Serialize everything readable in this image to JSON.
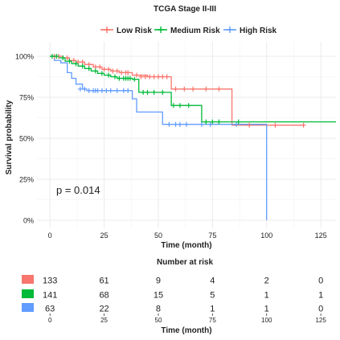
{
  "chart_data": {
    "type": "line",
    "title": "TCGA Stage II-III",
    "xlabel": "Time (month)",
    "ylabel": "Survival probability",
    "xlim": [
      -6,
      132
    ],
    "ylim": [
      0,
      1.02
    ],
    "x_ticks": [
      0,
      25,
      50,
      75,
      100,
      125
    ],
    "y_ticks": [
      {
        "value": 0,
        "label": "0%"
      },
      {
        "value": 0.25,
        "label": "25%"
      },
      {
        "value": 0.5,
        "label": "50%"
      },
      {
        "value": 0.75,
        "label": "75%"
      },
      {
        "value": 1.0,
        "label": "100%"
      }
    ],
    "grid": true,
    "legend_position": "top",
    "annotation": "p = 0.014",
    "series": [
      {
        "name": "Low Risk",
        "color": "#F8766D",
        "steps": [
          [
            0,
            1.0
          ],
          [
            6,
            0.99
          ],
          [
            9,
            0.975
          ],
          [
            12,
            0.965
          ],
          [
            16,
            0.95
          ],
          [
            20,
            0.935
          ],
          [
            24,
            0.92
          ],
          [
            28,
            0.91
          ],
          [
            32,
            0.9
          ],
          [
            38,
            0.885
          ],
          [
            45,
            0.875
          ],
          [
            56,
            0.8
          ],
          [
            84,
            0.58
          ],
          [
            117,
            0.58
          ]
        ],
        "censors": [
          [
            2,
            1.0
          ],
          [
            4,
            1.0
          ],
          [
            8,
            0.99
          ],
          [
            11,
            0.975
          ],
          [
            13,
            0.965
          ],
          [
            15,
            0.965
          ],
          [
            18,
            0.95
          ],
          [
            21,
            0.935
          ],
          [
            23,
            0.935
          ],
          [
            25,
            0.92
          ],
          [
            27,
            0.92
          ],
          [
            29,
            0.91
          ],
          [
            31,
            0.91
          ],
          [
            33,
            0.9
          ],
          [
            35,
            0.9
          ],
          [
            36,
            0.9
          ],
          [
            40,
            0.885
          ],
          [
            42,
            0.875
          ],
          [
            44,
            0.875
          ],
          [
            46,
            0.875
          ],
          [
            48,
            0.875
          ],
          [
            50,
            0.875
          ],
          [
            52,
            0.875
          ],
          [
            54,
            0.875
          ],
          [
            58,
            0.8
          ],
          [
            62,
            0.8
          ],
          [
            66,
            0.8
          ],
          [
            72,
            0.8
          ],
          [
            78,
            0.8
          ],
          [
            92,
            0.58
          ],
          [
            104,
            0.58
          ],
          [
            117,
            0.58
          ]
        ]
      },
      {
        "name": "Medium Risk",
        "color": "#00BA38",
        "steps": [
          [
            0,
            1.0
          ],
          [
            4,
            0.99
          ],
          [
            7,
            0.97
          ],
          [
            10,
            0.955
          ],
          [
            13,
            0.94
          ],
          [
            16,
            0.925
          ],
          [
            19,
            0.91
          ],
          [
            22,
            0.895
          ],
          [
            25,
            0.885
          ],
          [
            28,
            0.875
          ],
          [
            31,
            0.865
          ],
          [
            38,
            0.86
          ],
          [
            41,
            0.78
          ],
          [
            56,
            0.7
          ],
          [
            70,
            0.6
          ],
          [
            132,
            0.6
          ]
        ],
        "censors": [
          [
            1,
            1.0
          ],
          [
            3,
            1.0
          ],
          [
            6,
            0.99
          ],
          [
            9,
            0.97
          ],
          [
            12,
            0.955
          ],
          [
            15,
            0.94
          ],
          [
            18,
            0.925
          ],
          [
            21,
            0.91
          ],
          [
            24,
            0.895
          ],
          [
            27,
            0.885
          ],
          [
            30,
            0.875
          ],
          [
            32,
            0.865
          ],
          [
            34,
            0.865
          ],
          [
            35,
            0.865
          ],
          [
            36,
            0.865
          ],
          [
            37,
            0.865
          ],
          [
            39,
            0.86
          ],
          [
            43,
            0.78
          ],
          [
            45,
            0.78
          ],
          [
            48,
            0.78
          ],
          [
            52,
            0.78
          ],
          [
            57,
            0.7
          ],
          [
            60,
            0.7
          ],
          [
            64,
            0.7
          ],
          [
            72,
            0.6
          ],
          [
            75,
            0.6
          ],
          [
            78,
            0.6
          ],
          [
            87,
            0.6
          ]
        ]
      },
      {
        "name": "High Risk",
        "color": "#619CFF",
        "steps": [
          [
            0,
            1.0
          ],
          [
            2,
            0.975
          ],
          [
            5,
            0.96
          ],
          [
            8,
            0.9
          ],
          [
            10,
            0.865
          ],
          [
            12,
            0.83
          ],
          [
            15,
            0.8
          ],
          [
            17,
            0.79
          ],
          [
            38,
            0.74
          ],
          [
            40,
            0.66
          ],
          [
            52,
            0.585
          ],
          [
            100,
            0.585
          ],
          [
            100,
            0.0
          ]
        ],
        "censors": [
          [
            14,
            0.8
          ],
          [
            16,
            0.8
          ],
          [
            18,
            0.79
          ],
          [
            20,
            0.79
          ],
          [
            21,
            0.79
          ],
          [
            22,
            0.79
          ],
          [
            24,
            0.79
          ],
          [
            26,
            0.79
          ],
          [
            28,
            0.79
          ],
          [
            31,
            0.79
          ],
          [
            34,
            0.79
          ],
          [
            36,
            0.79
          ],
          [
            55,
            0.585
          ],
          [
            58,
            0.585
          ],
          [
            60,
            0.585
          ],
          [
            63,
            0.585
          ],
          [
            70,
            0.585
          ],
          [
            74,
            0.585
          ],
          [
            86,
            0.585
          ]
        ]
      }
    ]
  },
  "risk_table": {
    "title": "Number at risk",
    "xlabel": "Time (month)",
    "x_ticks": [
      0,
      25,
      50,
      75,
      100,
      125
    ],
    "rows": [
      {
        "name": "Low Risk",
        "color": "#F8766D",
        "values": [
          "133",
          "61",
          "9",
          "4",
          "2",
          "0"
        ]
      },
      {
        "name": "Medium Risk",
        "color": "#00BA38",
        "values": [
          "141",
          "68",
          "15",
          "5",
          "1",
          "1"
        ]
      },
      {
        "name": "High Risk",
        "color": "#619CFF",
        "values": [
          "63",
          "22",
          "8",
          "1",
          "1",
          "0"
        ]
      }
    ]
  }
}
